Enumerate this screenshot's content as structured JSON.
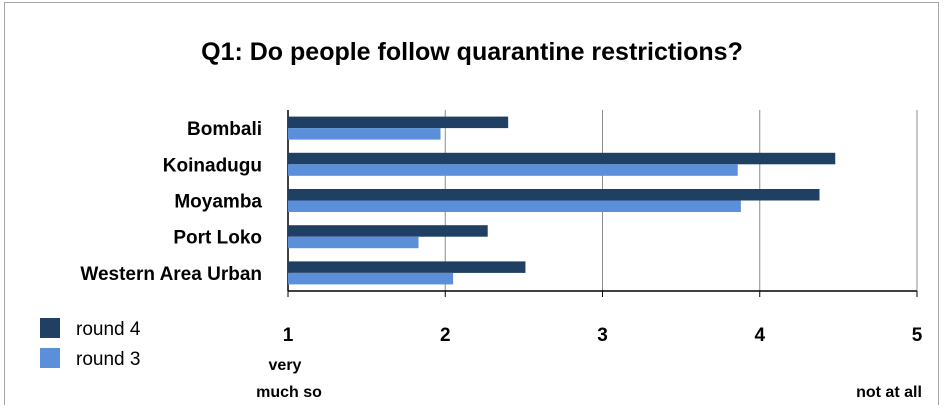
{
  "chart_data": {
    "type": "bar",
    "orientation": "horizontal",
    "title": "Q1: Do people follow quarantine restrictions?",
    "categories": [
      "Bombali",
      "Koinadugu",
      "Moyamba",
      "Port Loko",
      "Western Area Urban"
    ],
    "series": [
      {
        "name": "round 4",
        "color": "#1f3f63",
        "values": [
          2.4,
          4.48,
          4.38,
          2.27,
          2.51
        ]
      },
      {
        "name": "round 3",
        "color": "#5b8fd9",
        "values": [
          1.97,
          3.86,
          3.88,
          1.83,
          2.05
        ]
      }
    ],
    "xlim": [
      1,
      5
    ],
    "xticks": [
      "1",
      "2",
      "3",
      "4",
      "5"
    ],
    "x_annotations": {
      "low": [
        "very",
        "much so"
      ],
      "high": "not at all"
    },
    "grid": "vertical",
    "legend": "bottom-left"
  }
}
